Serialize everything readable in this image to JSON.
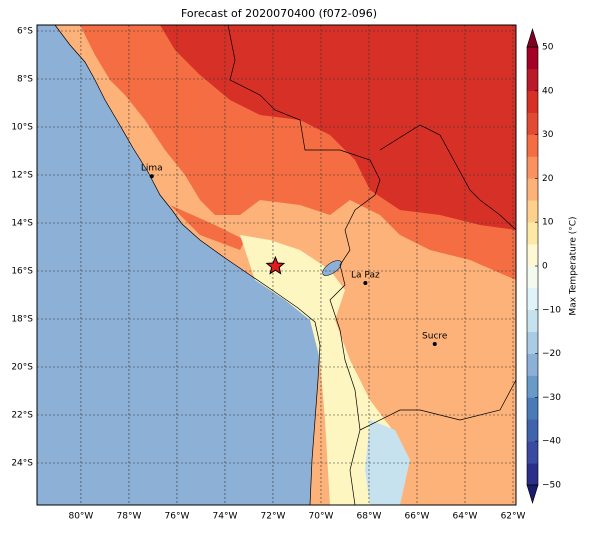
{
  "title": "Forecast of 2020070400 (f072-096)",
  "map": {
    "xlim": [
      -81.83,
      -61.875
    ],
    "ylim": [
      -25.75,
      -5.75
    ],
    "xticks": [
      {
        "value": -80,
        "label": "80°W"
      },
      {
        "value": -78,
        "label": "78°W"
      },
      {
        "value": -76,
        "label": "76°W"
      },
      {
        "value": -74,
        "label": "74°W"
      },
      {
        "value": -72,
        "label": "72°W"
      },
      {
        "value": -70,
        "label": "70°W"
      },
      {
        "value": -68,
        "label": "68°W"
      },
      {
        "value": -66,
        "label": "66°W"
      },
      {
        "value": -64,
        "label": "64°W"
      },
      {
        "value": -62,
        "label": "62°W"
      }
    ],
    "yticks": [
      {
        "value": -6,
        "label": "6°S"
      },
      {
        "value": -8,
        "label": "8°S"
      },
      {
        "value": -10,
        "label": "10°S"
      },
      {
        "value": -12,
        "label": "12°S"
      },
      {
        "value": -14,
        "label": "14°S"
      },
      {
        "value": -16,
        "label": "16°S"
      },
      {
        "value": -18,
        "label": "18°S"
      },
      {
        "value": -20,
        "label": "20°S"
      },
      {
        "value": -22,
        "label": "22°S"
      },
      {
        "value": -24,
        "label": "24°S"
      }
    ],
    "grid": true
  },
  "cities": [
    {
      "name": "Lima",
      "lon": -77.05,
      "lat": -12.05
    },
    {
      "name": "La Paz",
      "lon": -68.15,
      "lat": -16.5
    },
    {
      "name": "Sucre",
      "lon": -65.26,
      "lat": -19.04
    }
  ],
  "marker": {
    "lon": -71.9,
    "lat": -15.8,
    "color": "#e31a1c"
  },
  "colorbar": {
    "label": "Max Temperature (°C)",
    "clim": [
      -50,
      50
    ],
    "ticks": [
      {
        "value": -50,
        "label": "−50"
      },
      {
        "value": -40,
        "label": "−40"
      },
      {
        "value": -30,
        "label": "−30"
      },
      {
        "value": -20,
        "label": "−20"
      },
      {
        "value": -10,
        "label": "−10"
      },
      0,
      10,
      20,
      30,
      40,
      50
    ],
    "colors": [
      "#2c2f8a",
      "#3a4aa0",
      "#4063ab",
      "#4a7bb7",
      "#6a9bc8",
      "#8db0d6",
      "#a9cbe3",
      "#c6e2ef",
      "#e0f3f8",
      "#f4fbee",
      "#fef9d4",
      "#fee8a6",
      "#fdd08c",
      "#fdb27a",
      "#f99160",
      "#f46d43",
      "#e34a33",
      "#d73027",
      "#bb1a2a",
      "#a50026"
    ],
    "under": "#1a1a6e",
    "over": "#7f0020"
  }
}
